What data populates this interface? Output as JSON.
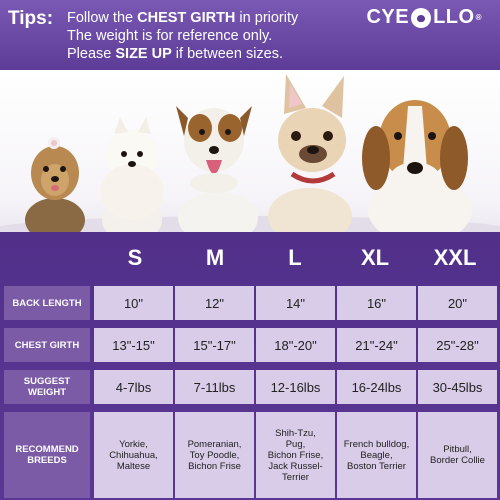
{
  "header": {
    "tips_label": "Tips:",
    "line1_pre": "Follow the ",
    "line1_bold": "CHEST GIRTH",
    "line1_post": " in priority",
    "line2": "The weight is for reference only.",
    "line3_pre": "Please ",
    "line3_bold": "SIZE UP",
    "line3_post": " if between sizes.",
    "brand_left": "CYE",
    "brand_right": "LLO",
    "brand_reg": "®"
  },
  "photo": {
    "dogs": [
      "yorkie",
      "pomeranian",
      "jack-russell",
      "french-bulldog",
      "beagle"
    ]
  },
  "table": {
    "sizes": [
      "S",
      "M",
      "L",
      "XL",
      "XXL"
    ],
    "rows": [
      {
        "label": "BACK  LENGTH",
        "cells": [
          "10\"",
          "12\"",
          "14\"",
          "16\"",
          "20\""
        ]
      },
      {
        "label": "CHEST GIRTH",
        "cells": [
          "13\"-15\"",
          "15\"-17\"",
          "18\"-20\"",
          "21\"-24\"",
          "25\"-28\""
        ]
      },
      {
        "label": "SUGGEST WEIGHT",
        "cells": [
          "4-7lbs",
          "7-11lbs",
          "12-16lbs",
          "16-24lbs",
          "30-45lbs"
        ]
      }
    ],
    "breeds_label": "RECOMMEND BREEDS",
    "breeds": [
      "Yorkie,\nChihuahua,\nMaltese",
      "Pomeranian,\nToy Poodle,\nBichon Frise",
      "Shih-Tzu,\nPug,\nBichon Frise,\nJack Russel-\nTerrier",
      "French bulldog,\nBeagle,\nBoston Terrier",
      "Pitbull,\nBorder Collie"
    ]
  },
  "colors": {
    "background": "#4f2f86",
    "header": "#6b4aa5",
    "label_cell": "#7b5aa6",
    "value_cell": "#d9cce8"
  }
}
